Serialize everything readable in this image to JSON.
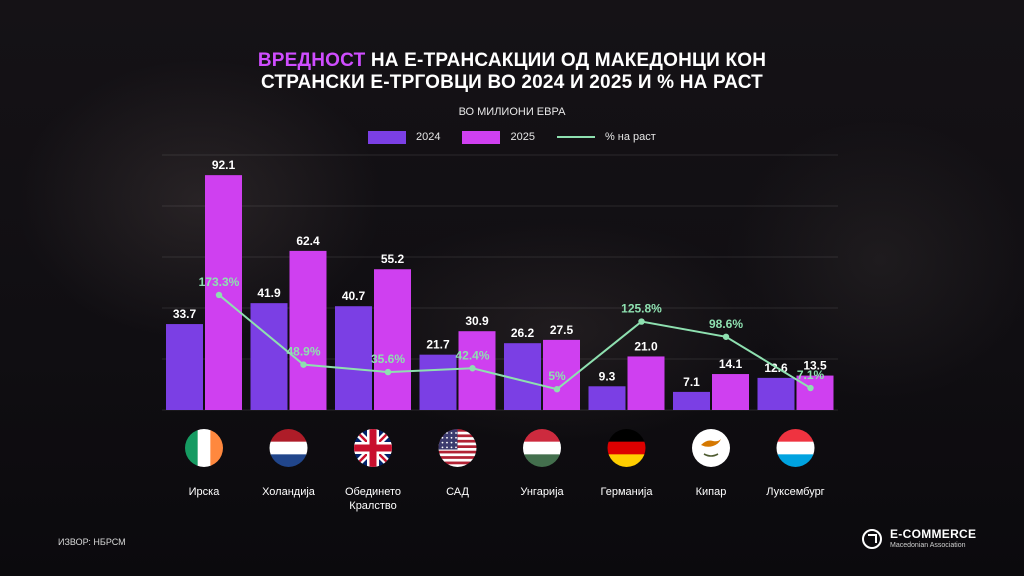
{
  "title": {
    "accent": "ВРЕДНОСТ",
    "line1_rest": " НА Е-ТРАНСАКЦИИ ОД МАКЕДОНЦИ КОН",
    "line2": "СТРАНСКИ Е-ТРГОВЦИ ВО 2024 И 2025 И % НА РАСТ"
  },
  "subtitle": "ВО МИЛИОНИ ЕВРА",
  "source": "ИЗВОР: НБРСМ",
  "logo": {
    "name": "E-COMMERCE",
    "sub": "Macedonian Association"
  },
  "colors": {
    "s2024": "#7b3fe4",
    "s2025": "#cf40f0",
    "growth": "#8ee0b0"
  },
  "chart_data": {
    "type": "bar",
    "categories": [
      "Ирска",
      "Холандија",
      "Обединето Кралство",
      "САД",
      "Унгарија",
      "Германија",
      "Кипар",
      "Луксембург"
    ],
    "category_lines": [
      [
        "Ирска"
      ],
      [
        "Холандија"
      ],
      [
        "Обединето",
        "Кралство"
      ],
      [
        "САД"
      ],
      [
        "Унгарија"
      ],
      [
        "Германија"
      ],
      [
        "Кипар"
      ],
      [
        "Луксембург"
      ]
    ],
    "series": [
      {
        "name": "2024",
        "values": [
          33.7,
          41.9,
          40.7,
          21.7,
          26.2,
          9.3,
          7.1,
          12.6
        ],
        "labels": [
          "33.7",
          "41.9",
          "40.7",
          "21.7",
          "26.2",
          "9.3",
          "7.1",
          "12.6"
        ]
      },
      {
        "name": "2025",
        "values": [
          92.1,
          62.4,
          55.2,
          30.9,
          27.5,
          21.0,
          14.1,
          13.5
        ],
        "labels": [
          "92.1",
          "62.4",
          "55.2",
          "30.9",
          "27.5",
          "21.0",
          "14.1",
          "13.5"
        ]
      }
    ],
    "line_series": {
      "name": "% на раст",
      "type": "line",
      "values": [
        173.3,
        48.9,
        35.6,
        42.4,
        5,
        125.8,
        98.6,
        7.1
      ],
      "labels": [
        "173.3%",
        "48.9%",
        "35.6%",
        "42.4%",
        "5%",
        "125.8%",
        "98.6%",
        "7.1%"
      ]
    },
    "flags": [
      "ireland-flag-icon",
      "netherlands-flag-icon",
      "uk-flag-icon",
      "usa-flag-icon",
      "hungary-flag-icon",
      "germany-flag-icon",
      "cyprus-flag-icon",
      "luxembourg-flag-icon"
    ],
    "ylim": [
      0,
      100
    ],
    "grid": true,
    "legend_position": "top-center"
  }
}
